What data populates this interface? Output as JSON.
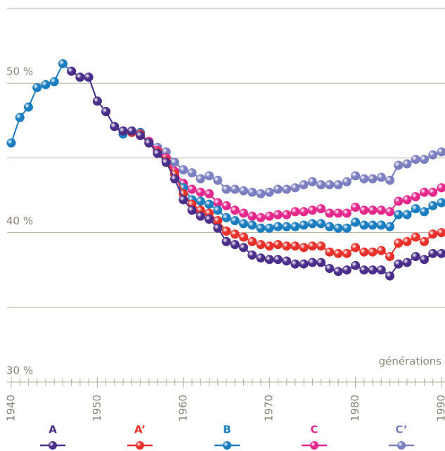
{
  "chart_data": {
    "type": "line",
    "x_label": "générations",
    "x": [
      1940,
      1941,
      1942,
      1943,
      1944,
      1945,
      1946,
      1947,
      1948,
      1949,
      1950,
      1951,
      1952,
      1953,
      1954,
      1955,
      1956,
      1957,
      1958,
      1959,
      1960,
      1961,
      1962,
      1963,
      1964,
      1965,
      1966,
      1967,
      1968,
      1969,
      1970,
      1971,
      1972,
      1973,
      1974,
      1975,
      1976,
      1977,
      1978,
      1979,
      1980,
      1981,
      1982,
      1983,
      1984,
      1985,
      1986,
      1987,
      1988,
      1989,
      1990
    ],
    "xlim": [
      1940,
      1990
    ],
    "xticks": [
      1940,
      1950,
      1960,
      1970,
      1980,
      1990
    ],
    "ylim": [
      30,
      55
    ],
    "yticks": [
      {
        "value": 30,
        "label": "30 %"
      },
      {
        "value": 40,
        "label": "40 %"
      },
      {
        "value": 50,
        "label": "50 %"
      }
    ],
    "ygrid": [
      35,
      40,
      45,
      50,
      55
    ],
    "series": [
      {
        "name": "C’",
        "color": "#7b7fc0",
        "values": [
          null,
          null,
          null,
          null,
          null,
          null,
          null,
          null,
          null,
          null,
          null,
          null,
          null,
          null,
          null,
          null,
          46.1,
          45.7,
          45.4,
          44.7,
          44.2,
          44.0,
          43.6,
          43.8,
          43.5,
          42.9,
          42.9,
          42.8,
          42.7,
          42.6,
          42.7,
          42.9,
          42.9,
          43.0,
          43.2,
          43.4,
          43.2,
          43.2,
          43.2,
          43.4,
          43.8,
          43.6,
          43.6,
          43.7,
          43.5,
          44.5,
          44.6,
          44.9,
          44.9,
          45.2,
          45.4
        ]
      },
      {
        "name": "C",
        "color": "#e5288c",
        "values": [
          null,
          null,
          null,
          null,
          null,
          null,
          null,
          null,
          null,
          null,
          null,
          null,
          null,
          null,
          null,
          46.5,
          46.1,
          45.5,
          45.0,
          44.1,
          43.3,
          42.9,
          42.7,
          42.6,
          42.0,
          41.8,
          41.5,
          41.3,
          41.1,
          41.0,
          41.1,
          41.2,
          41.2,
          41.4,
          41.4,
          41.5,
          41.6,
          41.3,
          41.3,
          41.3,
          41.7,
          41.5,
          41.5,
          41.5,
          41.4,
          42.1,
          42.2,
          42.4,
          42.7,
          42.7,
          43.0
        ]
      },
      {
        "name": "B",
        "color": "#1a7dc0",
        "values": [
          46.0,
          47.7,
          48.4,
          49.7,
          49.9,
          50.1,
          51.3,
          50.8,
          50.4,
          50.4,
          48.8,
          48.1,
          47.1,
          46.6,
          46.8,
          46.7,
          46.0,
          45.4,
          44.8,
          43.9,
          43.0,
          42.2,
          42.1,
          41.9,
          41.5,
          41.0,
          40.8,
          40.6,
          40.5,
          40.3,
          40.3,
          40.4,
          40.4,
          40.4,
          40.5,
          40.6,
          40.6,
          40.4,
          40.3,
          40.3,
          40.7,
          40.5,
          40.5,
          40.5,
          40.4,
          41.2,
          41.2,
          41.6,
          41.4,
          41.8,
          42.0
        ]
      },
      {
        "name": "A’",
        "color": "#e8302a",
        "values": [
          null,
          null,
          null,
          null,
          null,
          null,
          null,
          null,
          null,
          null,
          null,
          null,
          null,
          46.8,
          46.7,
          46.6,
          46.0,
          45.4,
          44.8,
          43.9,
          42.6,
          41.9,
          41.5,
          41.3,
          40.8,
          40.1,
          39.9,
          39.7,
          39.4,
          39.2,
          39.1,
          39.2,
          39.1,
          39.1,
          39.0,
          39.1,
          39.1,
          38.7,
          38.6,
          38.6,
          39.0,
          38.7,
          38.7,
          38.8,
          38.4,
          39.3,
          39.4,
          39.7,
          39.4,
          39.9,
          40.0
        ]
      },
      {
        "name": "A",
        "color": "#4b2d8a",
        "values": [
          null,
          null,
          null,
          null,
          null,
          null,
          null,
          50.8,
          50.4,
          50.4,
          48.8,
          48.1,
          47.1,
          46.8,
          46.8,
          46.5,
          46.0,
          45.3,
          44.7,
          43.6,
          42.2,
          41.5,
          41.1,
          40.9,
          40.3,
          39.4,
          39.2,
          39.0,
          38.5,
          38.3,
          38.2,
          38.2,
          38.1,
          37.9,
          37.9,
          38.0,
          38.0,
          37.6,
          37.4,
          37.5,
          37.8,
          37.5,
          37.5,
          37.5,
          37.1,
          37.9,
          38.0,
          38.4,
          38.2,
          38.6,
          38.6
        ]
      }
    ]
  }
}
